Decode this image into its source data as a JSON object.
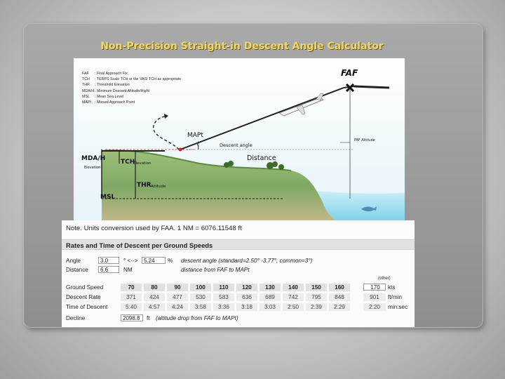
{
  "slide_title": "Non-Precision Straight-in Descent Angle Calculator",
  "diagram": {
    "legend": [
      {
        "abbr": "FAF",
        "text": ": Final Approach Fix"
      },
      {
        "abbr": "TCH",
        "text": ": TERPS Scale TCH or the VASI TCH as appropriate"
      },
      {
        "abbr": "THR",
        "text": ": Threshold Elevation"
      },
      {
        "abbr": "MDA/H",
        "text": ": Minimum Descent Altitude/Hight"
      },
      {
        "abbr": "MSL",
        "text": ": Mean Sea Level"
      },
      {
        "abbr": "MAPt",
        "text": ": Missed Approach Point"
      }
    ],
    "labels": {
      "faf": "FAF",
      "mapt": "MAPt",
      "descent_angle": "Descent angle",
      "distance": "Distance",
      "faf_altitude": "FAF Altitude",
      "mda": "MDA/H",
      "mda_sub": "Elevation",
      "tch": "TCH",
      "tch_sub": "Elevation",
      "thr": "THR",
      "thr_sub": "Altitude",
      "msl": "MSL"
    }
  },
  "calculator": {
    "note": "Note. Units conversion used by FAA. 1 NM = 6076.11548 ft",
    "header": "Rates and Time of Descent per Ground Speeds",
    "angle": {
      "label": "Angle",
      "value": "3.0",
      "arrow": "° <-->",
      "percent": "5.24",
      "pct_sign": "%",
      "hint": "descent angle (standard=2.50° -3.77°, common=3°)"
    },
    "distance": {
      "label": "Distance",
      "value": "6.6",
      "unit": "NM",
      "hint": "distance from FAF to MAPt"
    },
    "other_label": "(other)",
    "ground_speed": {
      "label": "Ground Speed",
      "values": [
        "70",
        "80",
        "90",
        "100",
        "110",
        "120",
        "130",
        "140",
        "150",
        "160"
      ],
      "other": "170",
      "unit": "kts"
    },
    "descent_rate": {
      "label": "Descent Rate",
      "values": [
        "371",
        "424",
        "477",
        "530",
        "583",
        "636",
        "689",
        "742",
        "795",
        "848"
      ],
      "other": "901",
      "unit": "ft/min"
    },
    "time_of_descent": {
      "label": "Time of Descent",
      "values": [
        "5:40",
        "4:57",
        "4:24",
        "3:58",
        "3:36",
        "3:18",
        "3:03",
        "2:50",
        "2:39",
        "2:29"
      ],
      "other": "2:20",
      "unit": "min:sec"
    },
    "decline": {
      "label": "Decline",
      "value": "2098.8",
      "unit": "ft",
      "hint": "(altitude drop from FAF to MAPt)"
    }
  },
  "colors": {
    "title": "#f0d76a",
    "sea": "#aee3f2",
    "sky": "#e9f6fb",
    "hill": "#7fa865"
  }
}
